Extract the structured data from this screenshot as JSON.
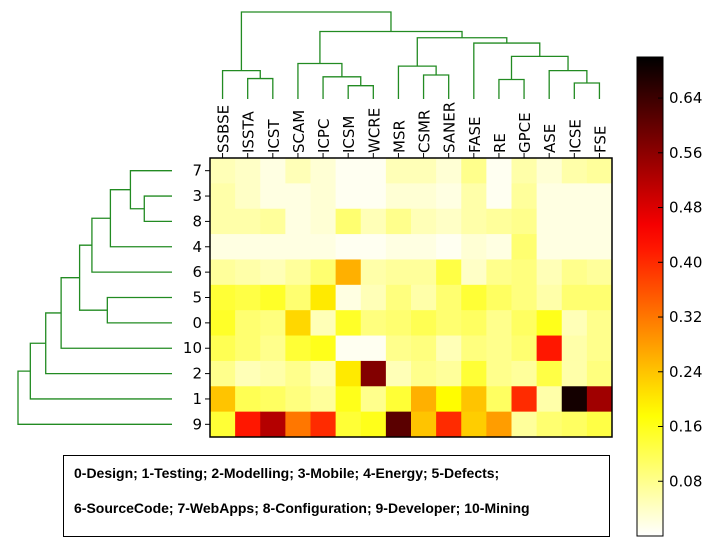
{
  "chart_data": {
    "type": "heatmap",
    "columns": [
      "SSBSE",
      "ISSTA",
      "ICST",
      "SCAM",
      "ICPC",
      "ICSM",
      "WCRE",
      "MSR",
      "CSMR",
      "SANER",
      "FASE",
      "RE",
      "GPCE",
      "ASE",
      "ICSE",
      "FSE"
    ],
    "rows": [
      "7",
      "3",
      "8",
      "4",
      "6",
      "5",
      "0",
      "10",
      "2",
      "1",
      "9"
    ],
    "values": [
      [
        0.05,
        0.04,
        0.02,
        0.05,
        0.03,
        0.01,
        0.01,
        0.05,
        0.05,
        0.03,
        0.08,
        0.01,
        0.06,
        0.03,
        0.06,
        0.07
      ],
      [
        0.06,
        0.04,
        0.02,
        0.02,
        0.03,
        0.01,
        0.01,
        0.03,
        0.03,
        0.02,
        0.06,
        0.01,
        0.07,
        0.02,
        0.02,
        0.02
      ],
      [
        0.06,
        0.06,
        0.07,
        0.02,
        0.03,
        0.1,
        0.05,
        0.08,
        0.05,
        0.04,
        0.06,
        0.07,
        0.08,
        0.02,
        0.02,
        0.02
      ],
      [
        0.02,
        0.02,
        0.02,
        0.02,
        0.02,
        0.01,
        0.01,
        0.02,
        0.02,
        0.01,
        0.03,
        0.02,
        0.1,
        0.02,
        0.02,
        0.02
      ],
      [
        0.07,
        0.06,
        0.05,
        0.07,
        0.1,
        0.26,
        0.06,
        0.07,
        0.07,
        0.13,
        0.04,
        0.08,
        0.09,
        0.05,
        0.08,
        0.07
      ],
      [
        0.14,
        0.13,
        0.15,
        0.1,
        0.2,
        0.02,
        0.05,
        0.09,
        0.06,
        0.1,
        0.14,
        0.11,
        0.09,
        0.06,
        0.1,
        0.1
      ],
      [
        0.15,
        0.1,
        0.09,
        0.22,
        0.05,
        0.15,
        0.09,
        0.1,
        0.12,
        0.1,
        0.11,
        0.08,
        0.11,
        0.16,
        0.05,
        0.08
      ],
      [
        0.12,
        0.1,
        0.08,
        0.14,
        0.16,
        0.01,
        0.01,
        0.08,
        0.09,
        0.05,
        0.09,
        0.08,
        0.1,
        0.42,
        0.06,
        0.08
      ],
      [
        0.08,
        0.05,
        0.06,
        0.08,
        0.05,
        0.2,
        0.57,
        0.05,
        0.08,
        0.07,
        0.14,
        0.08,
        0.07,
        0.13,
        0.06,
        0.09
      ],
      [
        0.24,
        0.12,
        0.11,
        0.09,
        0.07,
        0.16,
        0.08,
        0.14,
        0.26,
        0.18,
        0.24,
        0.11,
        0.4,
        0.06,
        0.68,
        0.54
      ],
      [
        0.14,
        0.42,
        0.52,
        0.32,
        0.4,
        0.14,
        0.16,
        0.61,
        0.24,
        0.4,
        0.23,
        0.28,
        0.07,
        0.1,
        0.11,
        0.13
      ]
    ],
    "colormap": "hot_r",
    "colorbar": {
      "range": [
        0,
        0.7
      ],
      "ticks": [
        "0.08",
        "0.16",
        "0.24",
        "0.32",
        "0.40",
        "0.48",
        "0.56",
        "0.64"
      ]
    },
    "dendrogram_color": "#228b22"
  },
  "legend": {
    "line1": "0-Design; 1-Testing; 2-Modelling; 3-Mobile; 4-Energy; 5-Defects;",
    "line2": "6-SourceCode; 7-WebApps; 8-Configuration; 9-Developer; 10-Mining"
  }
}
